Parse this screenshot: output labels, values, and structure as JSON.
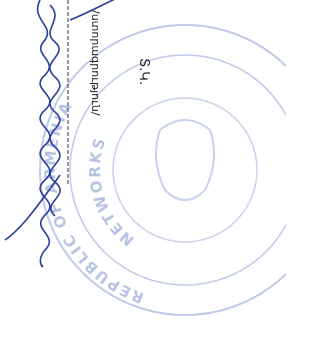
{
  "document": {
    "initials": "Տ.Կ.",
    "signature_caption": "/ստորագրություն/",
    "stamp": {
      "outer_text": "REPUBLIC OF ARMENIA",
      "inner_text": "NETWORKS"
    }
  }
}
